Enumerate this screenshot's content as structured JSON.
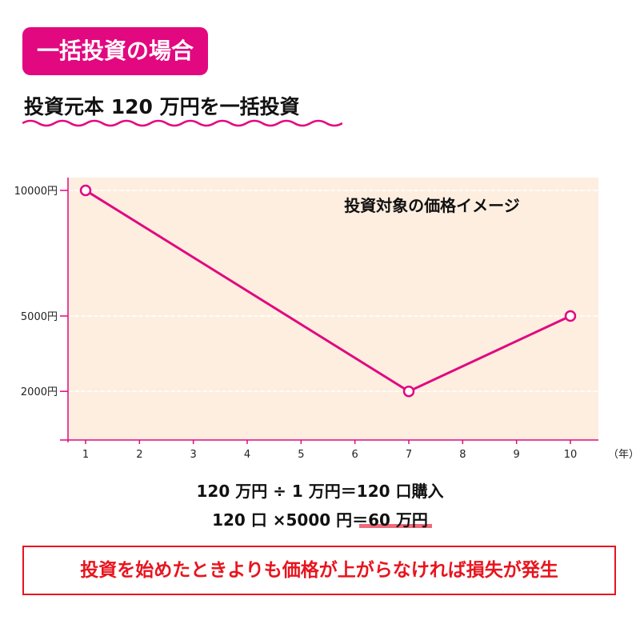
{
  "header": {
    "badge": "一括投資の場合",
    "subtitle": "投資元本 120 万円を一括投資"
  },
  "colors": {
    "accent": "#e2087f",
    "plot_bg": "#fdeee0",
    "warning": "#e8141e"
  },
  "chart_data": {
    "type": "line",
    "title": "投資対象の価格イメージ",
    "x": [
      1,
      7,
      10
    ],
    "values": [
      10000,
      2000,
      5000
    ],
    "xticks": [
      1,
      2,
      3,
      4,
      5,
      6,
      7,
      8,
      9,
      10
    ],
    "xtick_labels": [
      "1",
      "2",
      "3",
      "4",
      "5",
      "6",
      "7",
      "8",
      "9",
      "10"
    ],
    "yticks": [
      10000,
      5000,
      2000
    ],
    "ytick_labels": [
      "10000円",
      "5000円",
      "2000円"
    ],
    "xlabel": "（年）",
    "ylabel": "",
    "xlim": [
      0.65,
      11.5
    ],
    "ylim": [
      0,
      10500
    ],
    "grid": true
  },
  "calc": {
    "line1": "120 万円 ÷ 1 万円＝120 口購入",
    "line2": "120 口 ×5000 円＝60 万円"
  },
  "notice": "投資を始めたときよりも価格が上がらなければ損失が発生"
}
